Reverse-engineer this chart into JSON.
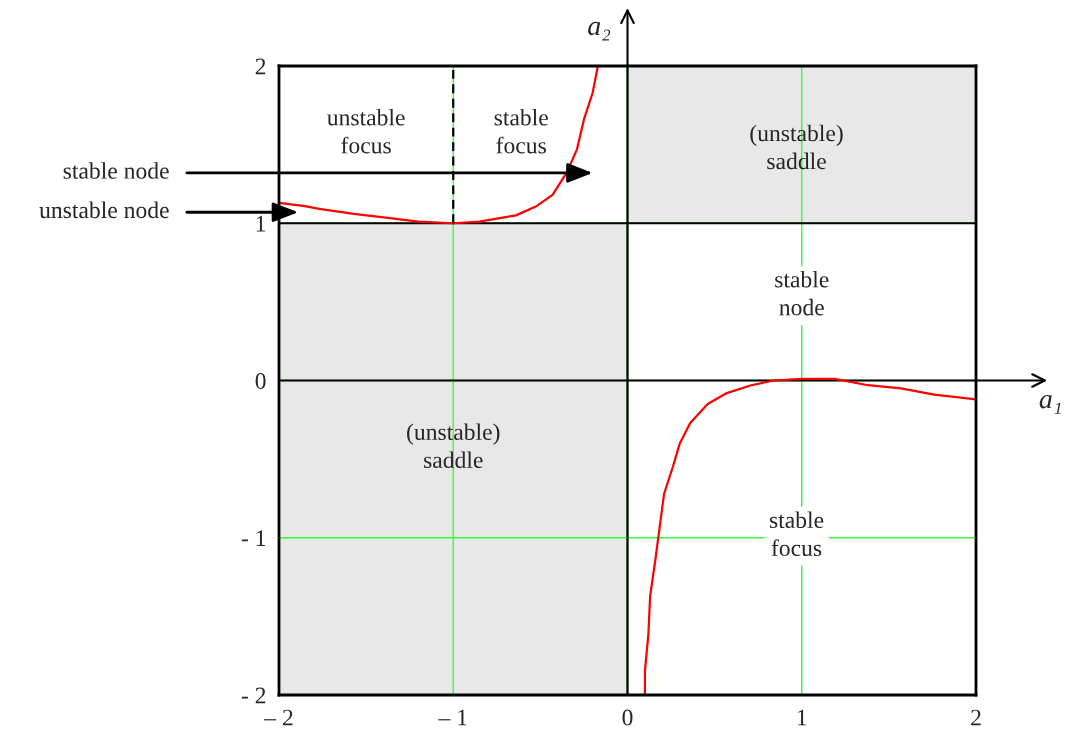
{
  "chart_data": {
    "type": "line",
    "xlabel": "a₁",
    "ylabel": "a₂",
    "xlim": [
      -2,
      2
    ],
    "ylim": [
      -2,
      2
    ],
    "xticks": [
      {
        "value": -2,
        "label": "– 2"
      },
      {
        "value": -1,
        "label": "– 1"
      },
      0,
      1,
      2
    ],
    "yticks": [
      {
        "value": -2,
        "label": "- 2"
      },
      {
        "value": -1,
        "label": "- 1"
      },
      0,
      1,
      2
    ],
    "grid": true,
    "series": [
      {
        "color": "#e8e8e8",
        "x": [
          0,
          2
        ],
        "values": [
          null,
          null
        ],
        "lower": [
          1,
          1
        ],
        "upper": [
          2,
          2
        ]
      },
      {
        "color": "#e8e8e8",
        "x": [
          -2,
          0
        ],
        "values": [
          null,
          null
        ],
        "lower": [
          -2,
          -2
        ],
        "upper": [
          1,
          1
        ]
      },
      {
        "color": "#000000",
        "x": [
          0,
          0
        ],
        "values": [
          -2,
          2
        ]
      },
      {
        "color": "#000000",
        "x": [
          -2,
          2
        ],
        "values": [
          0,
          0
        ]
      },
      {
        "color": "#000000",
        "x": [
          -2,
          2
        ],
        "values": [
          1,
          1
        ]
      },
      {
        "color": "#ff0000",
        "x": [
          -2.0,
          -1.86,
          -1.76,
          -1.57,
          -1.34,
          -1.2,
          -1.0,
          -0.85,
          -0.75,
          -0.64,
          -0.52,
          -0.43,
          -0.35,
          -0.29,
          -0.25,
          -0.2,
          -0.17
        ],
        "values": [
          1.13,
          1.11,
          1.09,
          1.06,
          1.03,
          1.01,
          1.0,
          1.01,
          1.03,
          1.05,
          1.11,
          1.18,
          1.32,
          1.47,
          1.66,
          1.83,
          2.0
        ]
      },
      {
        "color": "#ff0000",
        "x": [
          0.1,
          0.1,
          0.12,
          0.13,
          0.16,
          0.18,
          0.21,
          0.26,
          0.3,
          0.36,
          0.46,
          0.57,
          0.71,
          0.84,
          1.0,
          1.19,
          1.38,
          1.57,
          1.76,
          2.0
        ],
        "values": [
          -2.0,
          -1.85,
          -1.61,
          -1.37,
          -1.14,
          -0.97,
          -0.72,
          -0.55,
          -0.4,
          -0.27,
          -0.15,
          -0.08,
          -0.03,
          0.0,
          0.01,
          0.01,
          -0.03,
          -0.05,
          -0.09,
          -0.12
        ]
      },
      {
        "color": "#000000",
        "line_style": "dashed",
        "x": [
          -1,
          -1
        ],
        "values": [
          1,
          2
        ]
      }
    ],
    "annotations": [
      "unstable\nfocus",
      "stable\nfocus",
      "(unstable)\nsaddle",
      "stable\nnode",
      "(unstable)\nsaddle",
      "stable\nfocus",
      "stable node",
      "unstable node"
    ]
  }
}
